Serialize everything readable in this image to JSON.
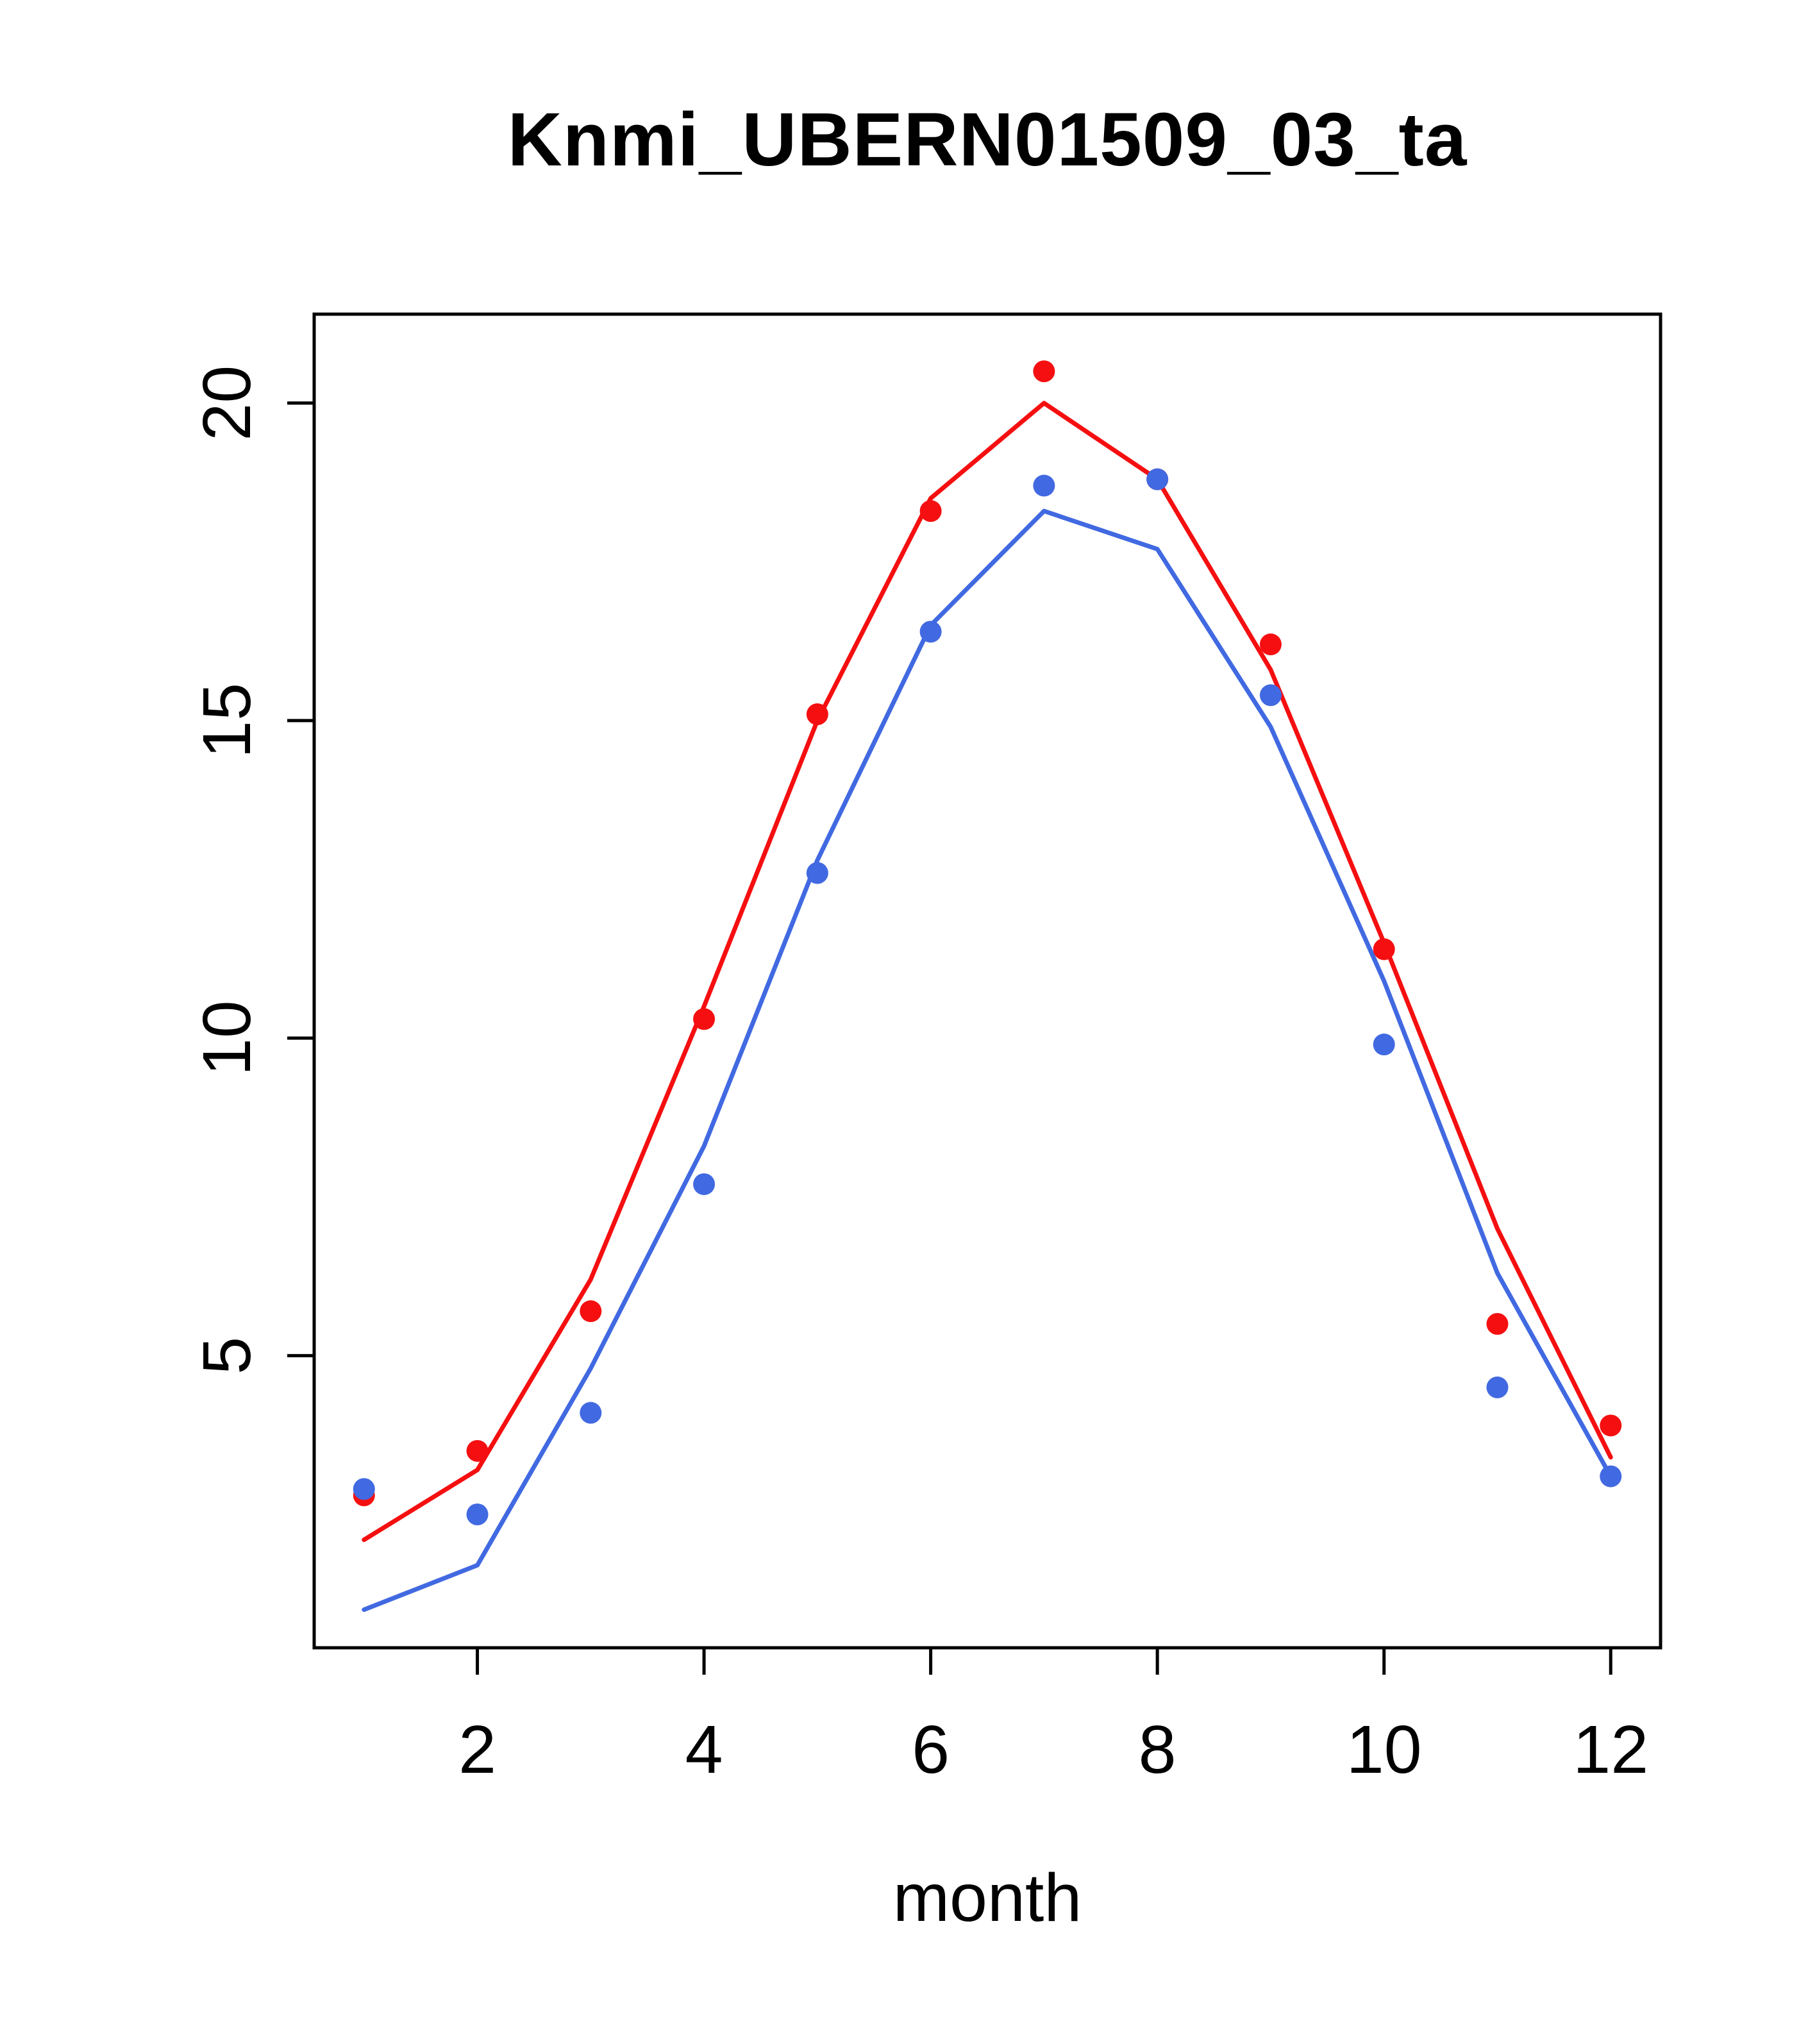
{
  "chart_data": {
    "type": "line",
    "title": "Knmi_UBERN01509_03_ta",
    "xlabel": "month",
    "ylabel": "",
    "x": [
      1,
      2,
      3,
      4,
      5,
      6,
      7,
      8,
      9,
      10,
      11,
      12
    ],
    "xlim": [
      0.56,
      12.44
    ],
    "ylim": [
      0.4,
      21.4
    ],
    "xticks": [
      2,
      4,
      6,
      8,
      10,
      12
    ],
    "yticks": [
      5,
      10,
      15,
      20
    ],
    "grid": false,
    "legend_position": "none",
    "colors": {
      "red": "#f50f10",
      "blue": "#4169e1"
    },
    "series": [
      {
        "name": "red-line",
        "kind": "line",
        "color": "#f50f10",
        "values": [
          2.1,
          3.2,
          6.2,
          10.5,
          15.0,
          18.5,
          20.0,
          18.8,
          15.8,
          11.5,
          7.0,
          3.4
        ]
      },
      {
        "name": "blue-line",
        "kind": "line",
        "color": "#4169e1",
        "values": [
          1.0,
          1.7,
          4.8,
          8.3,
          12.8,
          16.5,
          18.3,
          17.7,
          14.9,
          10.9,
          6.3,
          3.1
        ]
      },
      {
        "name": "red-points",
        "kind": "points",
        "color": "#f50f10",
        "values": [
          2.8,
          3.5,
          5.7,
          10.3,
          15.1,
          18.3,
          20.5,
          18.8,
          16.2,
          11.4,
          5.5,
          3.9
        ]
      },
      {
        "name": "blue-points",
        "kind": "points",
        "color": "#4169e1",
        "values": [
          2.9,
          2.5,
          4.1,
          7.7,
          12.6,
          16.4,
          18.7,
          18.8,
          15.4,
          9.9,
          4.5,
          3.1
        ]
      }
    ]
  }
}
